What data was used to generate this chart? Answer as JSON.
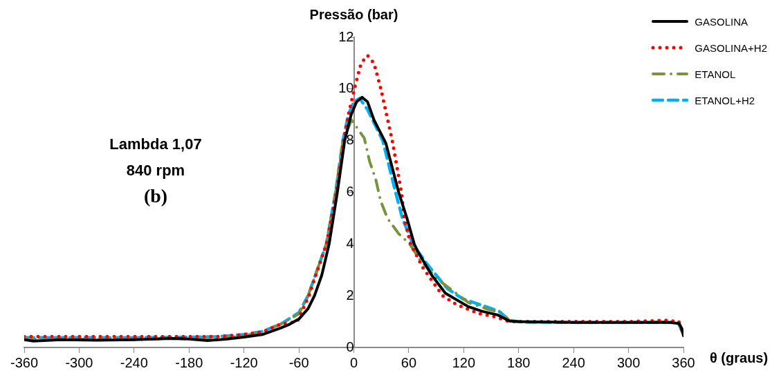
{
  "chart_data": {
    "type": "line",
    "ylabel": "Pressão (bar)",
    "xlabel": "θ (graus)",
    "annotations": [
      "Lambda 1,07",
      "840 rpm",
      "(b)"
    ],
    "xlim": [
      -360,
      360
    ],
    "xticks": [
      -360,
      -300,
      -240,
      -180,
      -120,
      -60,
      0,
      60,
      120,
      180,
      240,
      300,
      360
    ],
    "ylim": [
      0,
      12
    ],
    "yticks": [
      0,
      2,
      4,
      6,
      8,
      10,
      12
    ],
    "grid": false,
    "legend": "top right",
    "marker": "none",
    "series": [
      {
        "name": "GASOLINA",
        "color": "#000000",
        "line_style": "solid",
        "x": [
          -360,
          -350,
          -320,
          -280,
          -240,
          -200,
          -180,
          -160,
          -140,
          -120,
          -100,
          -80,
          -70,
          -60,
          -50,
          -43,
          -35,
          -27,
          -18,
          -10,
          -3,
          3,
          9,
          15,
          22,
          35,
          49,
          58,
          66,
          70,
          85,
          100,
          125,
          140,
          157,
          170,
          180,
          240,
          300,
          345,
          355,
          358,
          360
        ],
        "values": [
          0.3,
          0.25,
          0.3,
          0.28,
          0.3,
          0.35,
          0.33,
          0.27,
          0.32,
          0.4,
          0.5,
          0.75,
          0.9,
          1.1,
          1.5,
          2.0,
          2.8,
          4.0,
          6.0,
          8.0,
          9.0,
          9.5,
          9.68,
          9.5,
          8.8,
          7.9,
          6.0,
          5.0,
          4.0,
          3.7,
          2.8,
          2.1,
          1.58,
          1.4,
          1.26,
          1.02,
          1.0,
          0.97,
          0.97,
          0.97,
          0.93,
          0.75,
          0.45
        ]
      },
      {
        "name": "GASOLINA+H2",
        "color": "#ff0000",
        "line_style": "dotted",
        "x": [
          -360,
          -300,
          -240,
          -180,
          -150,
          -120,
          -100,
          -80,
          -62,
          -49,
          -30,
          -19,
          -11,
          -6,
          0.5,
          8,
          15,
          22,
          29.6,
          42,
          52,
          55,
          62,
          76,
          97,
          112,
          137,
          155,
          170,
          180,
          240,
          300,
          340,
          355,
          360
        ],
        "values": [
          0.42,
          0.42,
          0.42,
          0.42,
          0.42,
          0.5,
          0.6,
          0.9,
          1.0,
          2.0,
          4.0,
          6.0,
          8.0,
          9.0,
          10.0,
          11.0,
          11.3,
          11.0,
          10.0,
          8.0,
          6.0,
          5.0,
          4.0,
          3.05,
          2.0,
          1.66,
          1.31,
          1.18,
          1.0,
          1.0,
          1.0,
          1.0,
          1.05,
          1.0,
          0.5
        ]
      },
      {
        "name": "ETANOL",
        "color": "#77933c",
        "line_style": "dashdot",
        "x": [
          -360,
          -320,
          -280,
          -240,
          -200,
          -170,
          -150,
          -120,
          -100,
          -80,
          -60,
          -50,
          -30,
          -20,
          -12,
          -2.5,
          11.4,
          17.2,
          24,
          29,
          36.7,
          49,
          61,
          72,
          91,
          125,
          147,
          162,
          170,
          180,
          240,
          300,
          355,
          360
        ],
        "values": [
          0.33,
          0.3,
          0.33,
          0.3,
          0.35,
          0.3,
          0.35,
          0.45,
          0.6,
          0.9,
          1.3,
          2.0,
          4.0,
          6.0,
          8.0,
          8.8,
          8.1,
          7.2,
          6.5,
          5.7,
          5.0,
          4.4,
          4.0,
          3.4,
          2.65,
          1.74,
          1.47,
          1.34,
          1.04,
          0.98,
          0.97,
          0.97,
          1.0,
          0.45
        ]
      },
      {
        "name": "ETANOL+H2",
        "color": "#00b0f0",
        "line_style": "dashed",
        "x": [
          -360,
          -300,
          -240,
          -180,
          -150,
          -120,
          -100,
          -80,
          -60,
          -50,
          -30,
          -20,
          -12,
          -6,
          0,
          6.3,
          15,
          31.6,
          45.6,
          53,
          64.5,
          79,
          102,
          119,
          142,
          159,
          170,
          184,
          240,
          300,
          350,
          355,
          360
        ],
        "values": [
          0.38,
          0.38,
          0.38,
          0.4,
          0.42,
          0.5,
          0.62,
          0.9,
          1.35,
          2.0,
          4.0,
          6.0,
          8.0,
          9.0,
          9.5,
          9.64,
          9.2,
          8.0,
          6.0,
          5.0,
          4.0,
          3.27,
          2.28,
          1.88,
          1.61,
          1.39,
          1.04,
          0.98,
          0.97,
          0.97,
          0.97,
          0.9,
          0.5
        ]
      }
    ]
  }
}
